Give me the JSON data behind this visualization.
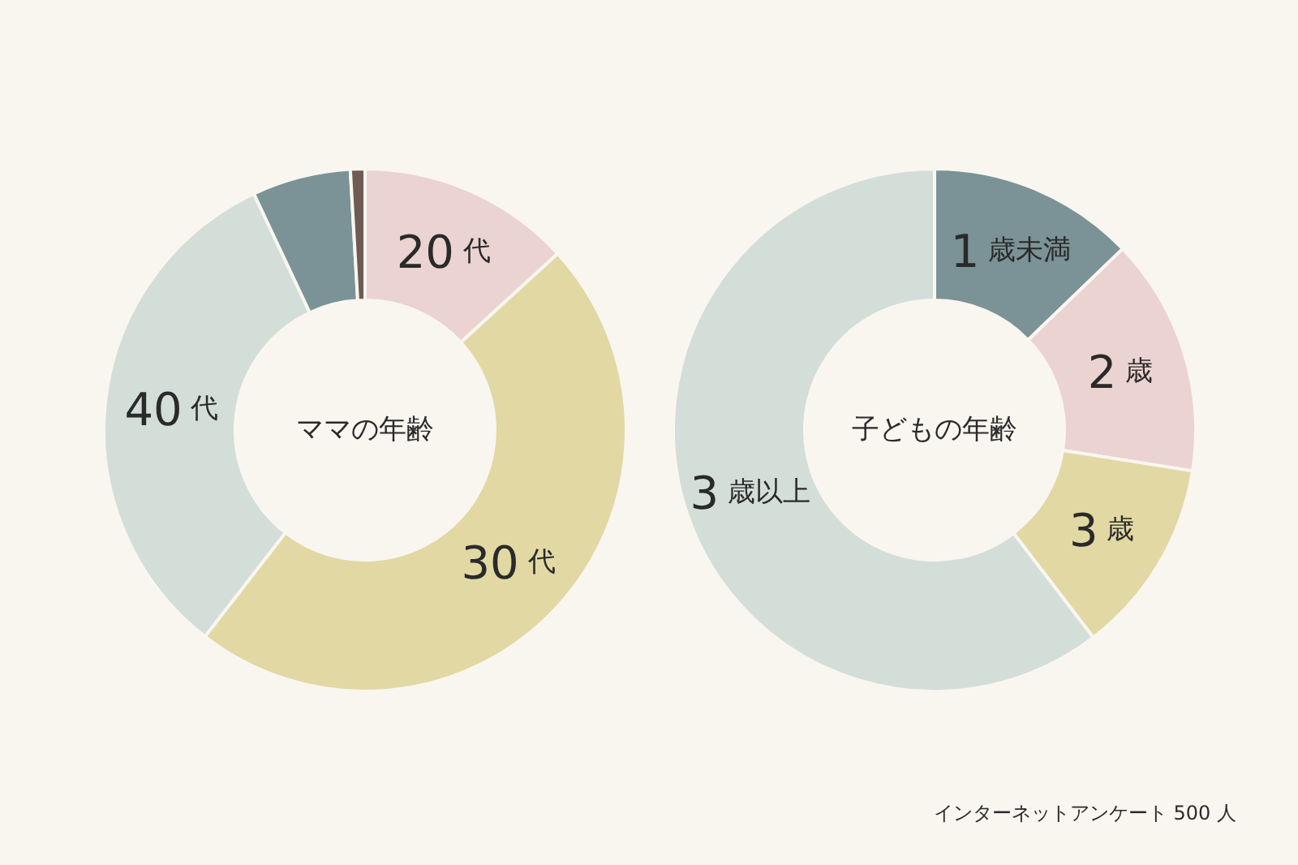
{
  "chart_data": [
    {
      "type": "donut",
      "title": "ママの年齢",
      "categories": [
        "20 代",
        "30 代",
        "40 代",
        null,
        null
      ],
      "values": [
        13.2,
        47.3,
        32.5,
        6.1,
        0.9
      ],
      "colors": [
        "#ebd3d1",
        "#e1d8a4",
        "#d4ded9",
        "#7b9397",
        "#6f5a54"
      ]
    },
    {
      "type": "donut",
      "title": "子どもの年齢",
      "categories": [
        "1 歳未満",
        "2 歳",
        "3 歳",
        "3 歳以上"
      ],
      "values": [
        12.8,
        14.7,
        12.1,
        60.4
      ],
      "colors": [
        "#7b9397",
        "#ebd3d1",
        "#e1d8a4",
        "#d4ded9"
      ],
      "annotations": [
        "インターネットアンケート 500 人"
      ]
    }
  ]
}
